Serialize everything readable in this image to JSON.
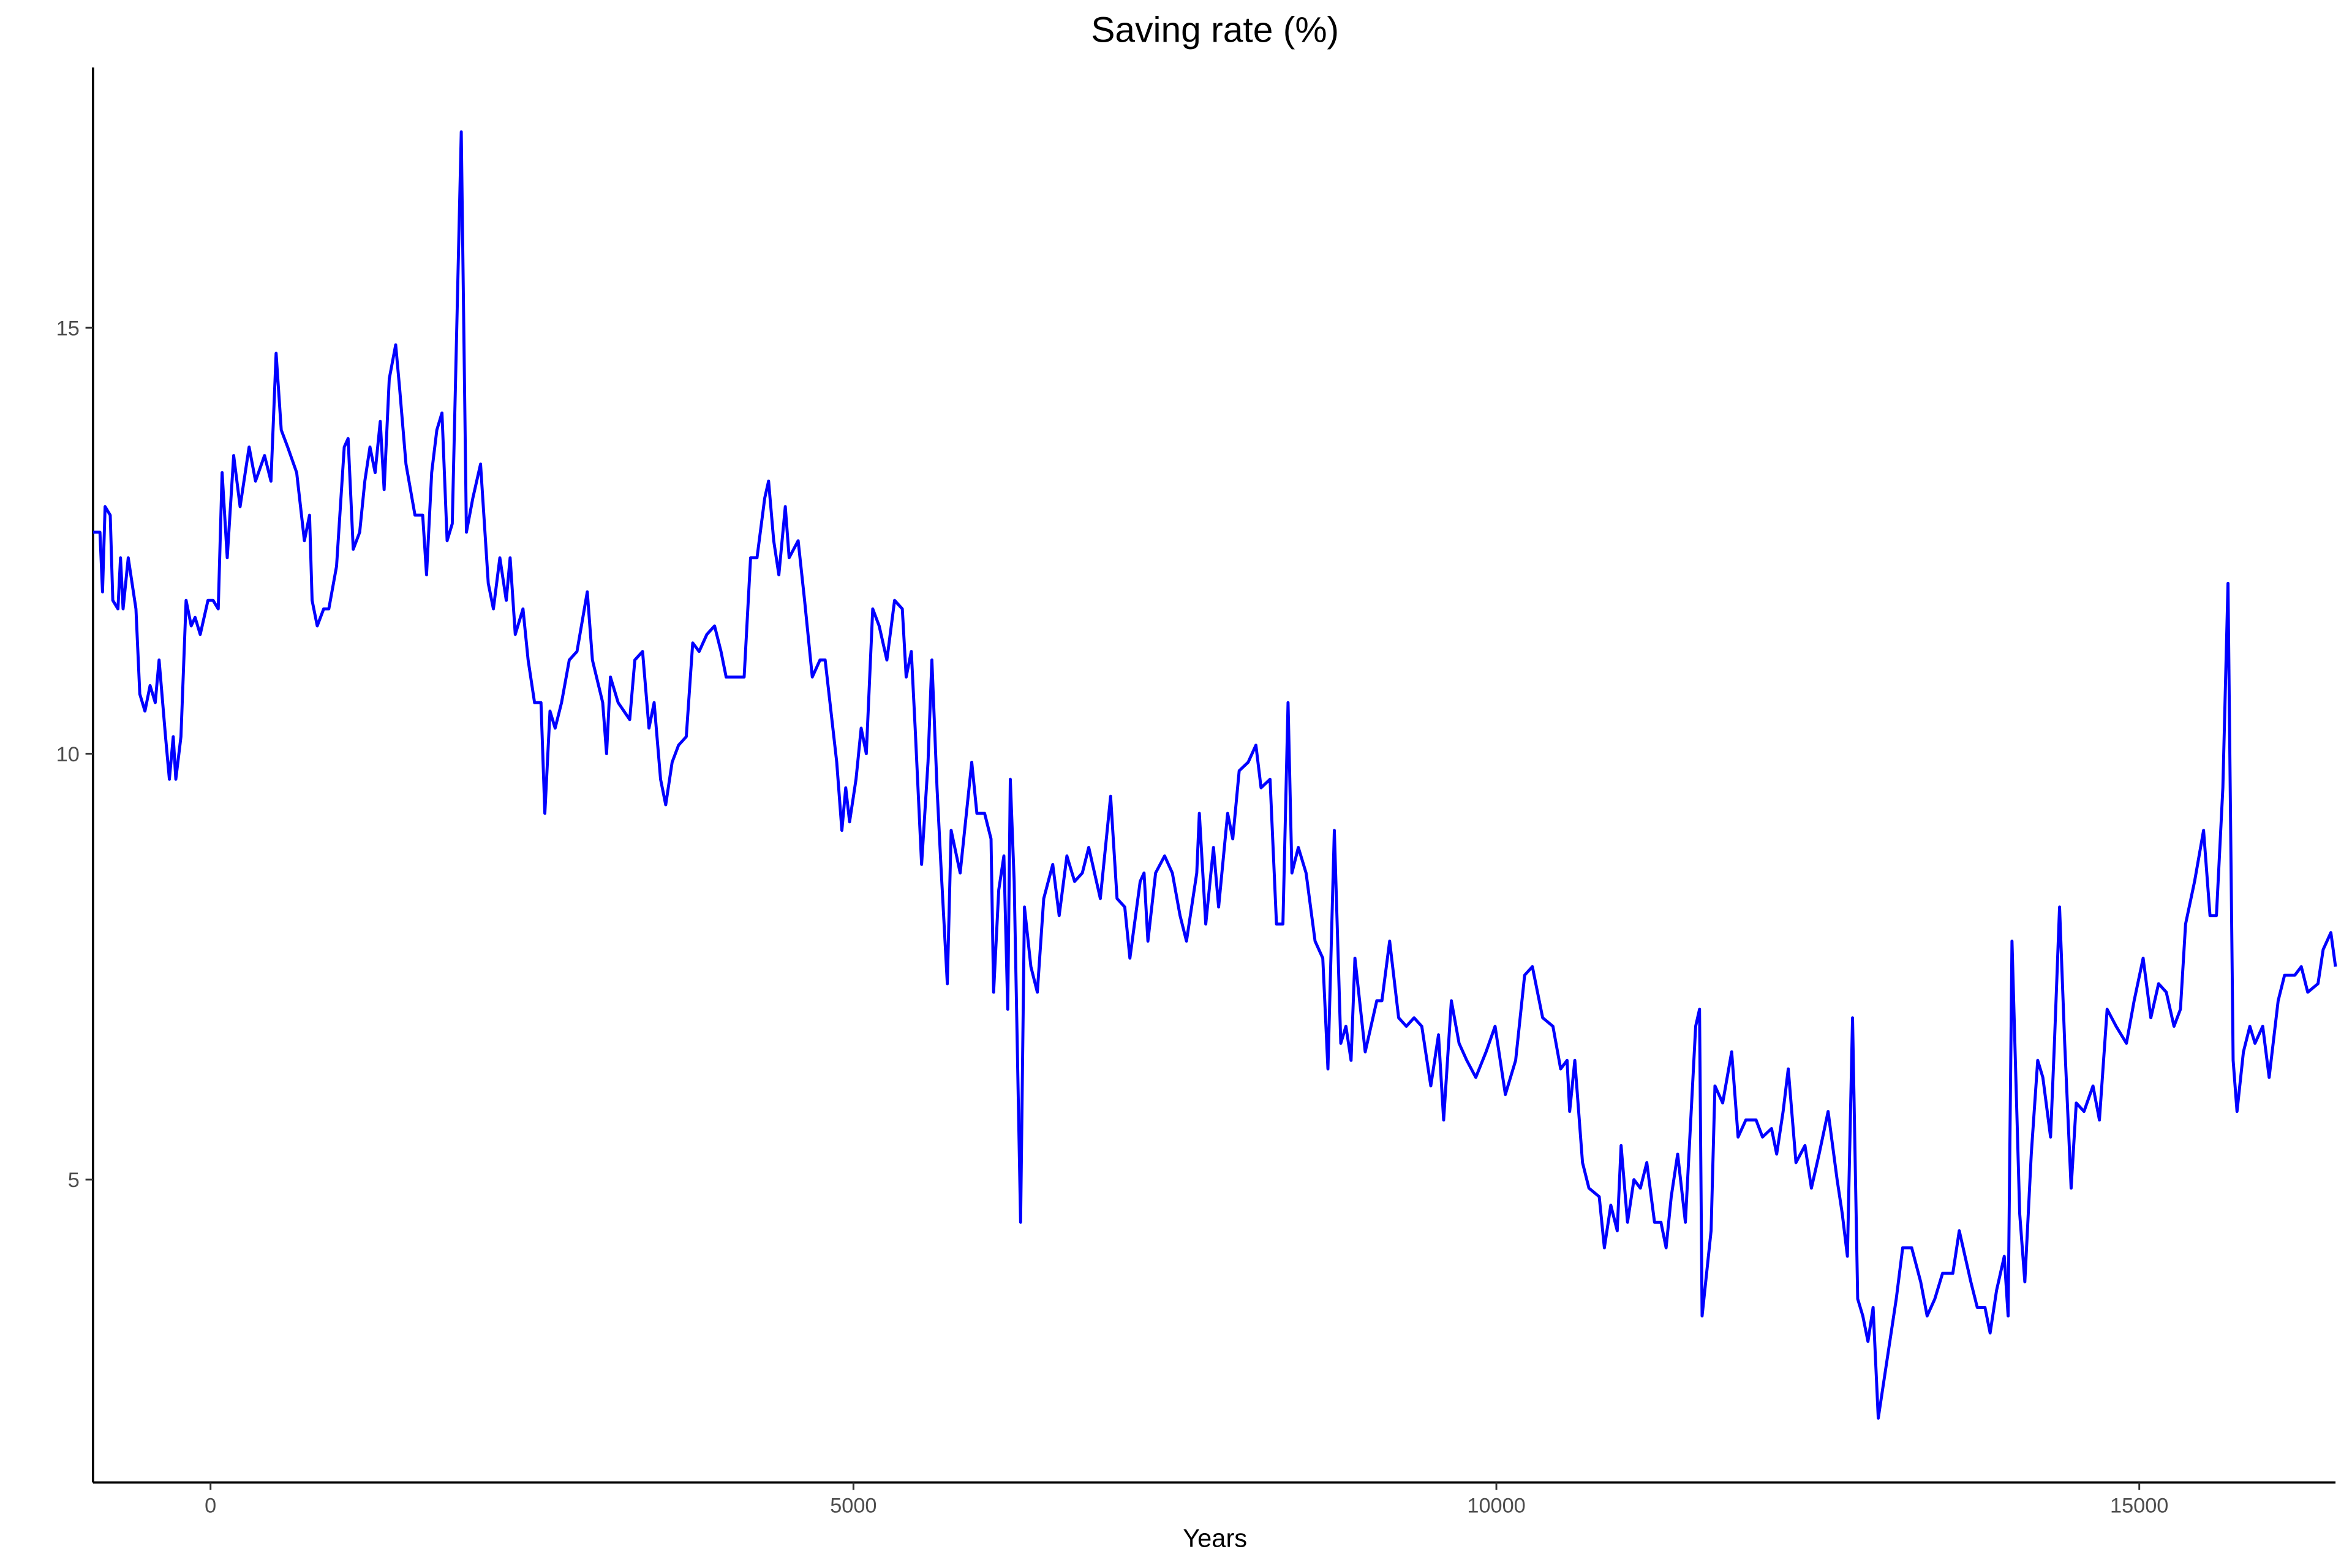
{
  "chart_data": {
    "type": "line",
    "title": "Saving rate (%)",
    "x_label": "Years",
    "x": [
      -914,
      -860,
      -840,
      -820,
      -780,
      -760,
      -720,
      -700,
      -680,
      -640,
      -580,
      -550,
      -510,
      -470,
      -430,
      -400,
      -350,
      -320,
      -290,
      -270,
      -230,
      -190,
      -150,
      -120,
      -80,
      -20,
      20,
      60,
      90,
      130,
      180,
      230,
      300,
      350,
      420,
      470,
      510,
      550,
      600,
      670,
      730,
      770,
      790,
      830,
      880,
      920,
      980,
      1040,
      1070,
      1110,
      1160,
      1200,
      1240,
      1280,
      1320,
      1350,
      1390,
      1440,
      1470,
      1520,
      1590,
      1650,
      1680,
      1720,
      1760,
      1800,
      1840,
      1880,
      1950,
      1990,
      2040,
      2100,
      2160,
      2200,
      2250,
      2300,
      2330,
      2370,
      2430,
      2470,
      2520,
      2570,
      2600,
      2640,
      2680,
      2730,
      2790,
      2850,
      2930,
      2970,
      3050,
      3080,
      3110,
      3170,
      3260,
      3300,
      3360,
      3410,
      3450,
      3500,
      3540,
      3590,
      3640,
      3700,
      3750,
      3800,
      3860,
      3920,
      3970,
      4010,
      4080,
      4150,
      4200,
      4250,
      4310,
      4340,
      4380,
      4420,
      4470,
      4500,
      4570,
      4620,
      4680,
      4740,
      4780,
      4870,
      4910,
      4940,
      4970,
      5020,
      5060,
      5100,
      5150,
      5200,
      5260,
      5320,
      5380,
      5410,
      5450,
      5480,
      5530,
      5580,
      5610,
      5650,
      5680,
      5730,
      5760,
      5830,
      5920,
      5960,
      6020,
      6070,
      6090,
      6130,
      6170,
      6200,
      6220,
      6250,
      6300,
      6330,
      6380,
      6430,
      6480,
      6550,
      6600,
      6660,
      6720,
      6780,
      6830,
      6920,
      7000,
      7050,
      7110,
      7150,
      7230,
      7260,
      7290,
      7350,
      7420,
      7480,
      7540,
      7590,
      7670,
      7690,
      7740,
      7800,
      7840,
      7910,
      7950,
      8000,
      8070,
      8130,
      8170,
      8240,
      8290,
      8340,
      8380,
      8410,
      8460,
      8520,
      8590,
      8650,
      8690,
      8740,
      8790,
      8830,
      8870,
      8900,
      8980,
      9070,
      9110,
      9170,
      9240,
      9300,
      9360,
      9420,
      9490,
      9550,
      9590,
      9650,
      9710,
      9770,
      9840,
      9920,
      9990,
      10070,
      10150,
      10220,
      10280,
      10360,
      10440,
      10500,
      10550,
      10570,
      10610,
      10670,
      10720,
      10800,
      10840,
      10890,
      10940,
      10970,
      11020,
      11070,
      11120,
      11170,
      11230,
      11280,
      11320,
      11360,
      11410,
      11470,
      11550,
      11580,
      11600,
      11670,
      11700,
      11760,
      11830,
      11880,
      11940,
      12020,
      12070,
      12140,
      12180,
      12230,
      12270,
      12330,
      12400,
      12450,
      12510,
      12580,
      12650,
      12690,
      12730,
      12770,
      12810,
      12850,
      12890,
      12930,
      12970,
      13020,
      13110,
      13160,
      13230,
      13300,
      13350,
      13410,
      13470,
      13550,
      13600,
      13690,
      13740,
      13800,
      13840,
      13890,
      13950,
      13980,
      14010,
      14070,
      14110,
      14160,
      14210,
      14250,
      14310,
      14340,
      14380,
      14420,
      14470,
      14510,
      14570,
      14640,
      14690,
      14750,
      14820,
      14900,
      14960,
      15030,
      15090,
      15150,
      15210,
      15270,
      15320,
      15360,
      15430,
      15500,
      15550,
      15600,
      15650,
      15690,
      15730,
      15760,
      15810,
      15860,
      15900,
      15960,
      16010,
      16080,
      16130,
      16210,
      16260,
      16310,
      16390,
      16430,
      16490,
      16526
    ],
    "series": [
      {
        "color": "#0000ff",
        "values": [
          12.6,
          12.6,
          11.9,
          12.9,
          12.8,
          11.8,
          11.7,
          12.3,
          11.7,
          12.3,
          11.7,
          10.7,
          10.5,
          10.8,
          10.6,
          11.1,
          10.2,
          9.7,
          10.2,
          9.7,
          10.2,
          11.8,
          11.5,
          11.6,
          11.4,
          11.8,
          11.8,
          11.7,
          13.3,
          12.3,
          13.5,
          12.9,
          13.6,
          13.2,
          13.5,
          13.2,
          14.7,
          13.8,
          13.6,
          13.3,
          12.5,
          12.8,
          11.8,
          11.5,
          11.7,
          11.7,
          12.2,
          13.6,
          13.7,
          12.4,
          12.6,
          13.2,
          13.6,
          13.3,
          13.9,
          13.1,
          14.4,
          14.8,
          14.3,
          13.4,
          12.8,
          12.8,
          12.1,
          13.3,
          13.8,
          14.0,
          12.5,
          12.7,
          17.3,
          12.6,
          13.0,
          13.4,
          12.0,
          11.7,
          12.3,
          11.8,
          12.3,
          11.4,
          11.7,
          11.1,
          10.6,
          10.6,
          9.3,
          10.5,
          10.3,
          10.6,
          11.1,
          11.2,
          11.9,
          11.1,
          10.6,
          10.0,
          10.9,
          10.6,
          10.4,
          11.1,
          11.2,
          10.3,
          10.6,
          9.7,
          9.4,
          9.9,
          10.1,
          10.2,
          11.3,
          11.2,
          11.4,
          11.5,
          11.2,
          10.9,
          10.9,
          10.9,
          12.3,
          12.3,
          13.0,
          13.2,
          12.5,
          12.1,
          12.9,
          12.3,
          12.5,
          11.8,
          10.9,
          11.1,
          11.1,
          9.9,
          9.1,
          9.6,
          9.2,
          9.7,
          10.3,
          10.0,
          11.7,
          11.5,
          11.1,
          11.8,
          11.7,
          10.9,
          11.2,
          10.3,
          8.7,
          9.9,
          11.1,
          9.6,
          8.7,
          7.3,
          9.1,
          8.6,
          9.9,
          9.3,
          9.3,
          9.0,
          7.2,
          8.4,
          8.8,
          7.0,
          9.7,
          8.5,
          4.5,
          8.2,
          7.5,
          7.2,
          8.3,
          8.7,
          8.1,
          8.8,
          8.5,
          8.6,
          8.9,
          8.3,
          9.5,
          8.3,
          8.2,
          7.6,
          8.5,
          8.6,
          7.8,
          8.6,
          8.8,
          8.6,
          8.1,
          7.8,
          8.6,
          9.3,
          8.0,
          8.9,
          8.2,
          9.3,
          9.0,
          9.8,
          9.9,
          10.1,
          9.6,
          9.7,
          8.0,
          8.0,
          10.6,
          8.6,
          8.9,
          8.6,
          7.8,
          7.6,
          6.3,
          9.1,
          6.6,
          6.8,
          6.4,
          7.6,
          6.5,
          7.1,
          7.1,
          7.8,
          6.9,
          6.8,
          6.9,
          6.8,
          6.1,
          6.7,
          5.7,
          7.1,
          6.6,
          6.4,
          6.2,
          6.5,
          6.8,
          6.0,
          6.4,
          7.4,
          7.5,
          6.9,
          6.8,
          6.3,
          6.4,
          5.8,
          6.4,
          5.2,
          4.9,
          4.8,
          4.2,
          4.7,
          4.4,
          5.4,
          4.5,
          5.0,
          4.9,
          5.2,
          4.5,
          4.5,
          4.2,
          4.8,
          5.3,
          4.5,
          6.8,
          7.0,
          3.4,
          4.4,
          6.1,
          5.9,
          6.5,
          5.5,
          5.7,
          5.7,
          5.5,
          5.6,
          5.3,
          5.8,
          6.3,
          5.2,
          5.4,
          4.9,
          5.3,
          5.8,
          5.0,
          4.6,
          4.1,
          6.9,
          3.6,
          3.4,
          3.1,
          3.5,
          2.2,
          2.7,
          3.6,
          4.2,
          4.2,
          3.8,
          3.4,
          3.6,
          3.9,
          3.9,
          4.4,
          3.8,
          3.5,
          3.5,
          3.2,
          3.7,
          4.1,
          3.4,
          7.8,
          4.6,
          3.8,
          5.3,
          6.4,
          6.2,
          5.5,
          6.6,
          8.2,
          6.6,
          4.9,
          5.9,
          5.8,
          6.1,
          5.7,
          7.0,
          6.8,
          6.6,
          7.1,
          7.6,
          6.9,
          7.3,
          7.2,
          6.8,
          7.0,
          8.0,
          8.5,
          9.1,
          8.1,
          8.1,
          9.6,
          12.0,
          6.4,
          5.8,
          6.5,
          6.8,
          6.6,
          6.8,
          6.2,
          7.1,
          7.4,
          7.4,
          7.5,
          7.2,
          7.3,
          7.7,
          7.9,
          7.5
        ]
      }
    ],
    "xlim": [
      -914,
      16526
    ],
    "ylim": [
      1.445,
      18.055
    ],
    "xticks": [
      0,
      5000,
      10000,
      15000
    ],
    "yticks": [
      5,
      10,
      15
    ],
    "grid": false
  }
}
